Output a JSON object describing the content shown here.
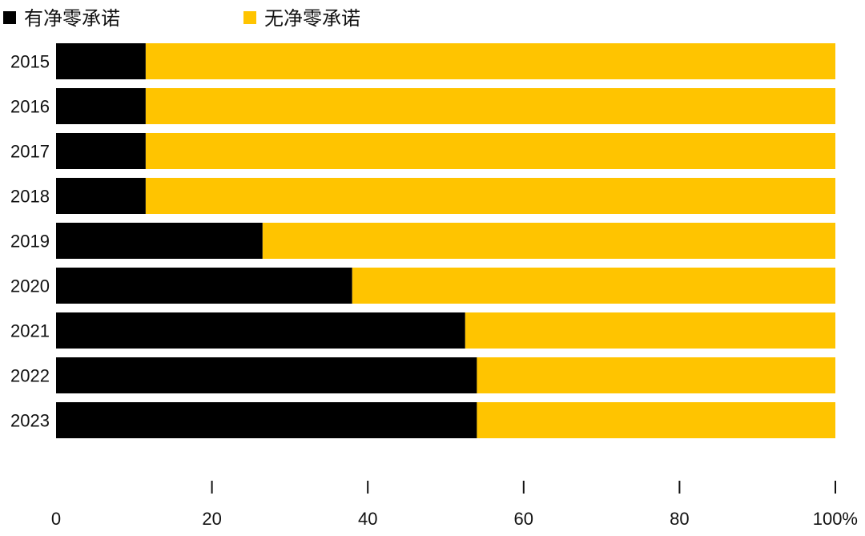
{
  "chart_data": {
    "type": "bar",
    "orientation": "horizontal",
    "stacked": true,
    "categories": [
      "2015",
      "2016",
      "2017",
      "2018",
      "2019",
      "2020",
      "2021",
      "2022",
      "2023"
    ],
    "series": [
      {
        "name": "有净零承诺",
        "color": "#000000",
        "values": [
          11.5,
          11.5,
          11.5,
          11.5,
          26.5,
          38,
          52.5,
          54,
          54
        ]
      },
      {
        "name": "无净零承诺",
        "color": "#FFC400",
        "values": [
          88.5,
          88.5,
          88.5,
          88.5,
          73.5,
          62,
          47.5,
          46,
          46
        ]
      }
    ],
    "xlim": [
      0,
      100
    ],
    "x_ticks": [
      "0",
      "20",
      "40",
      "60",
      "80",
      "100%"
    ],
    "x_tick_values": [
      0,
      20,
      40,
      60,
      80,
      100
    ],
    "legend_position": "top-left",
    "grid": false
  }
}
